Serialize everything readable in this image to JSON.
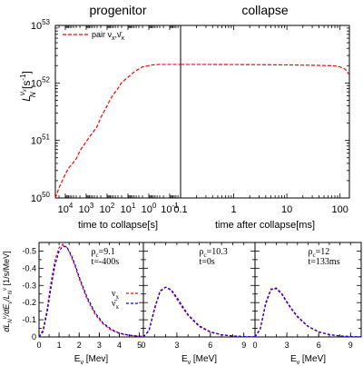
{
  "chart_data": [
    {
      "id": "progenitor",
      "type": "line",
      "title": "progenitor",
      "xlabel": "time to collapse[s]",
      "ylabel_main": "L",
      "ylabel_sup": "ν",
      "ylabel_supsub": "x",
      "ylabel_sub": "N",
      "ylabel_unit": " [s",
      "ylabel_unit_sup": "-1",
      "ylabel_unit_end": "]",
      "x_scale": "log",
      "x_reversed": true,
      "y_scale": "log",
      "xlim": [
        30000,
        0.03
      ],
      "ylim": [
        1e+50,
        1e+53
      ],
      "xticks": [
        {
          "v": 10000,
          "base": "10",
          "exp": "4"
        },
        {
          "v": 1000,
          "base": "10",
          "exp": "3"
        },
        {
          "v": 100,
          "base": "10",
          "exp": "2"
        },
        {
          "v": 10,
          "base": "10",
          "exp": "1"
        },
        {
          "v": 1,
          "base": "10",
          "exp": "0"
        },
        {
          "v": 0.1,
          "base": "10",
          "exp": "-1"
        }
      ],
      "yticks": [
        {
          "v": 1e+50,
          "base": "10",
          "exp": "50"
        },
        {
          "v": 1e+51,
          "base": "10",
          "exp": "51"
        },
        {
          "v": 1e+52,
          "base": "10",
          "exp": "52"
        },
        {
          "v": 1e+53,
          "base": "10",
          "exp": "53"
        }
      ],
      "legend": "top-left",
      "series": [
        {
          "name": "pair ν",
          "name_sub": "x",
          "name_sep": ",ν̄",
          "name_sub2": "x",
          "color": "#ff0000",
          "dash": "4,2",
          "x": [
            30000,
            20000,
            10000,
            7000,
            5000,
            3000,
            2000,
            1000,
            700,
            500,
            300,
            200,
            100,
            70,
            50,
            30,
            20,
            10,
            7,
            5,
            3,
            2,
            1,
            0.7,
            0.5,
            0.3,
            0.2,
            0.1,
            0.07,
            0.05,
            0.03
          ],
          "y": [
            1e+50,
            1.5e+50,
            2.6e+50,
            3.3e+50,
            3.8e+50,
            4.8e+50,
            6.6e+50,
            9.5e+50,
            1.15e+51,
            1.35e+51,
            1.75e+51,
            2.5e+51,
            4e+51,
            5.2e+51,
            6.3e+51,
            8e+51,
            1.02e+52,
            1.25e+52,
            1.4e+52,
            1.55e+52,
            1.75e+52,
            1.9e+52,
            2e+52,
            2.05e+52,
            2.08e+52,
            2.1e+52,
            2.1e+52,
            2.1e+52,
            2.1e+52,
            2.1e+52,
            2.1e+52
          ]
        }
      ]
    },
    {
      "id": "collapse",
      "type": "line",
      "title": "collapse",
      "xlabel": "time after collapse[ms]",
      "x_scale": "log",
      "y_scale": "log",
      "xlim": [
        0.1,
        150
      ],
      "ylim": [
        1e+50,
        1e+53
      ],
      "xticks": [
        {
          "v": 0.1,
          "label": "0.1"
        },
        {
          "v": 1,
          "label": "1"
        },
        {
          "v": 10,
          "label": "10"
        },
        {
          "v": 100,
          "label": "100"
        }
      ],
      "series": [
        {
          "name": "",
          "color": "#ff0000",
          "dash": "4,2",
          "x": [
            0.1,
            0.3,
            1,
            3,
            10,
            30,
            60,
            80,
            100,
            120,
            135,
            145
          ],
          "y": [
            2.1e+52,
            2.1e+52,
            2.09e+52,
            2.08e+52,
            2.06e+52,
            2.03e+52,
            2e+52,
            1.98e+52,
            1.9e+52,
            1.78e+52,
            1.6e+52,
            1.42e+52
          ]
        }
      ]
    },
    {
      "id": "spec1",
      "type": "line",
      "ylabel": "dL",
      "ylabel_full": "dL<sub>N</sub><sup>ν</sup>/dE<sub>ν</sub>/L<sub>N</sub><sup>ν</sup> [1/s/MeV]",
      "xlabel": "E",
      "xlabel_sub": "ν",
      "xlabel_unit": " [Mev]",
      "xlim": [
        0,
        5.2
      ],
      "ylim": [
        0,
        0.55
      ],
      "xticks": [
        0,
        1,
        2,
        3,
        4,
        5
      ],
      "yticks": [
        {
          "v": 0,
          "label": "0"
        },
        {
          "v": 0.1,
          "label": "-0.1"
        },
        {
          "v": 0.2,
          "label": "-0.2"
        },
        {
          "v": 0.3,
          "label": "-0.3"
        },
        {
          "v": 0.4,
          "label": "-0.4"
        },
        {
          "v": 0.5,
          "label": "-0.5"
        }
      ],
      "annotation_rho": "ρ",
      "annotation_rho_sub": "c",
      "annotation_rho_val": "=9.1",
      "annotation_t": "t=-400s",
      "legend": "right",
      "series": [
        {
          "name": "ν",
          "name_sub": "x",
          "color": "#ff0000",
          "dash": "3,2",
          "x": [
            0,
            0.2,
            0.4,
            0.6,
            0.8,
            1.0,
            1.2,
            1.4,
            1.6,
            1.8,
            2.0,
            2.4,
            2.8,
            3.2,
            3.6,
            4.0,
            4.5,
            5.0,
            5.2
          ],
          "y": [
            0,
            0.04,
            0.16,
            0.32,
            0.45,
            0.52,
            0.54,
            0.52,
            0.47,
            0.41,
            0.34,
            0.22,
            0.13,
            0.075,
            0.04,
            0.02,
            0.009,
            0.004,
            0.003
          ]
        },
        {
          "name": "ν̄",
          "name_sub": "x",
          "color": "#0000ff",
          "dash": "3,2",
          "x": [
            0,
            0.2,
            0.4,
            0.6,
            0.8,
            1.0,
            1.2,
            1.4,
            1.6,
            1.8,
            2.0,
            2.4,
            2.8,
            3.2,
            3.6,
            4.0,
            4.5,
            5.0,
            5.2
          ],
          "y": [
            0,
            0.03,
            0.14,
            0.29,
            0.42,
            0.5,
            0.53,
            0.52,
            0.48,
            0.42,
            0.35,
            0.23,
            0.14,
            0.08,
            0.045,
            0.022,
            0.01,
            0.004,
            0.003
          ]
        }
      ]
    },
    {
      "id": "spec2",
      "type": "line",
      "xlabel": "E",
      "xlabel_sub": "ν",
      "xlabel_unit": " [MeV]",
      "xlim": [
        0,
        10
      ],
      "ylim": [
        0,
        0.55
      ],
      "xticks": [
        0,
        3,
        6,
        9
      ],
      "annotation_rho": "ρ",
      "annotation_rho_sub": "c",
      "annotation_rho_val": "=10.3",
      "annotation_t": "t=0s",
      "series": [
        {
          "name": "",
          "color": "#ff0000",
          "dash": "3,2",
          "x": [
            0,
            0.5,
            1.0,
            1.5,
            2.0,
            2.5,
            3.0,
            3.5,
            4.0,
            5.0,
            6.0,
            7.0,
            8.0,
            9.0,
            10.0
          ],
          "y": [
            0,
            0.04,
            0.17,
            0.27,
            0.29,
            0.27,
            0.22,
            0.17,
            0.125,
            0.06,
            0.027,
            0.012,
            0.005,
            0.002,
            0.001
          ]
        },
        {
          "name": "",
          "color": "#0000ff",
          "dash": "3,2",
          "x": [
            0,
            0.5,
            1.0,
            1.5,
            2.0,
            2.5,
            3.0,
            3.5,
            4.0,
            5.0,
            6.0,
            7.0,
            8.0,
            9.0,
            10.0
          ],
          "y": [
            0,
            0.035,
            0.16,
            0.265,
            0.29,
            0.275,
            0.23,
            0.18,
            0.13,
            0.065,
            0.03,
            0.013,
            0.006,
            0.002,
            0.001
          ]
        }
      ]
    },
    {
      "id": "spec3",
      "type": "line",
      "xlabel": "E",
      "xlabel_sub": "ν",
      "xlabel_unit": " [MeV]",
      "xlim": [
        0,
        10
      ],
      "ylim": [
        0,
        0.55
      ],
      "xticks": [
        0,
        3,
        6,
        9
      ],
      "annotation_rho": "ρ",
      "annotation_rho_sub": "c",
      "annotation_rho_val": "=12",
      "annotation_t": "t=133ms",
      "series": [
        {
          "name": "",
          "color": "#ff0000",
          "dash": "3,2",
          "x": [
            0,
            0.5,
            1.0,
            1.5,
            2.0,
            2.5,
            3.0,
            3.5,
            4.0,
            5.0,
            6.0,
            7.0,
            8.0,
            9.0,
            10.0
          ],
          "y": [
            0,
            0.05,
            0.2,
            0.28,
            0.28,
            0.25,
            0.2,
            0.155,
            0.115,
            0.06,
            0.028,
            0.013,
            0.006,
            0.002,
            0.001
          ]
        },
        {
          "name": "",
          "color": "#0000ff",
          "dash": "3,2",
          "x": [
            0,
            0.5,
            1.0,
            1.5,
            2.0,
            2.5,
            3.0,
            3.5,
            4.0,
            5.0,
            6.0,
            7.0,
            8.0,
            9.0,
            10.0
          ],
          "y": [
            0,
            0.045,
            0.19,
            0.275,
            0.285,
            0.255,
            0.205,
            0.16,
            0.12,
            0.062,
            0.03,
            0.014,
            0.006,
            0.002,
            0.001
          ]
        }
      ]
    }
  ]
}
